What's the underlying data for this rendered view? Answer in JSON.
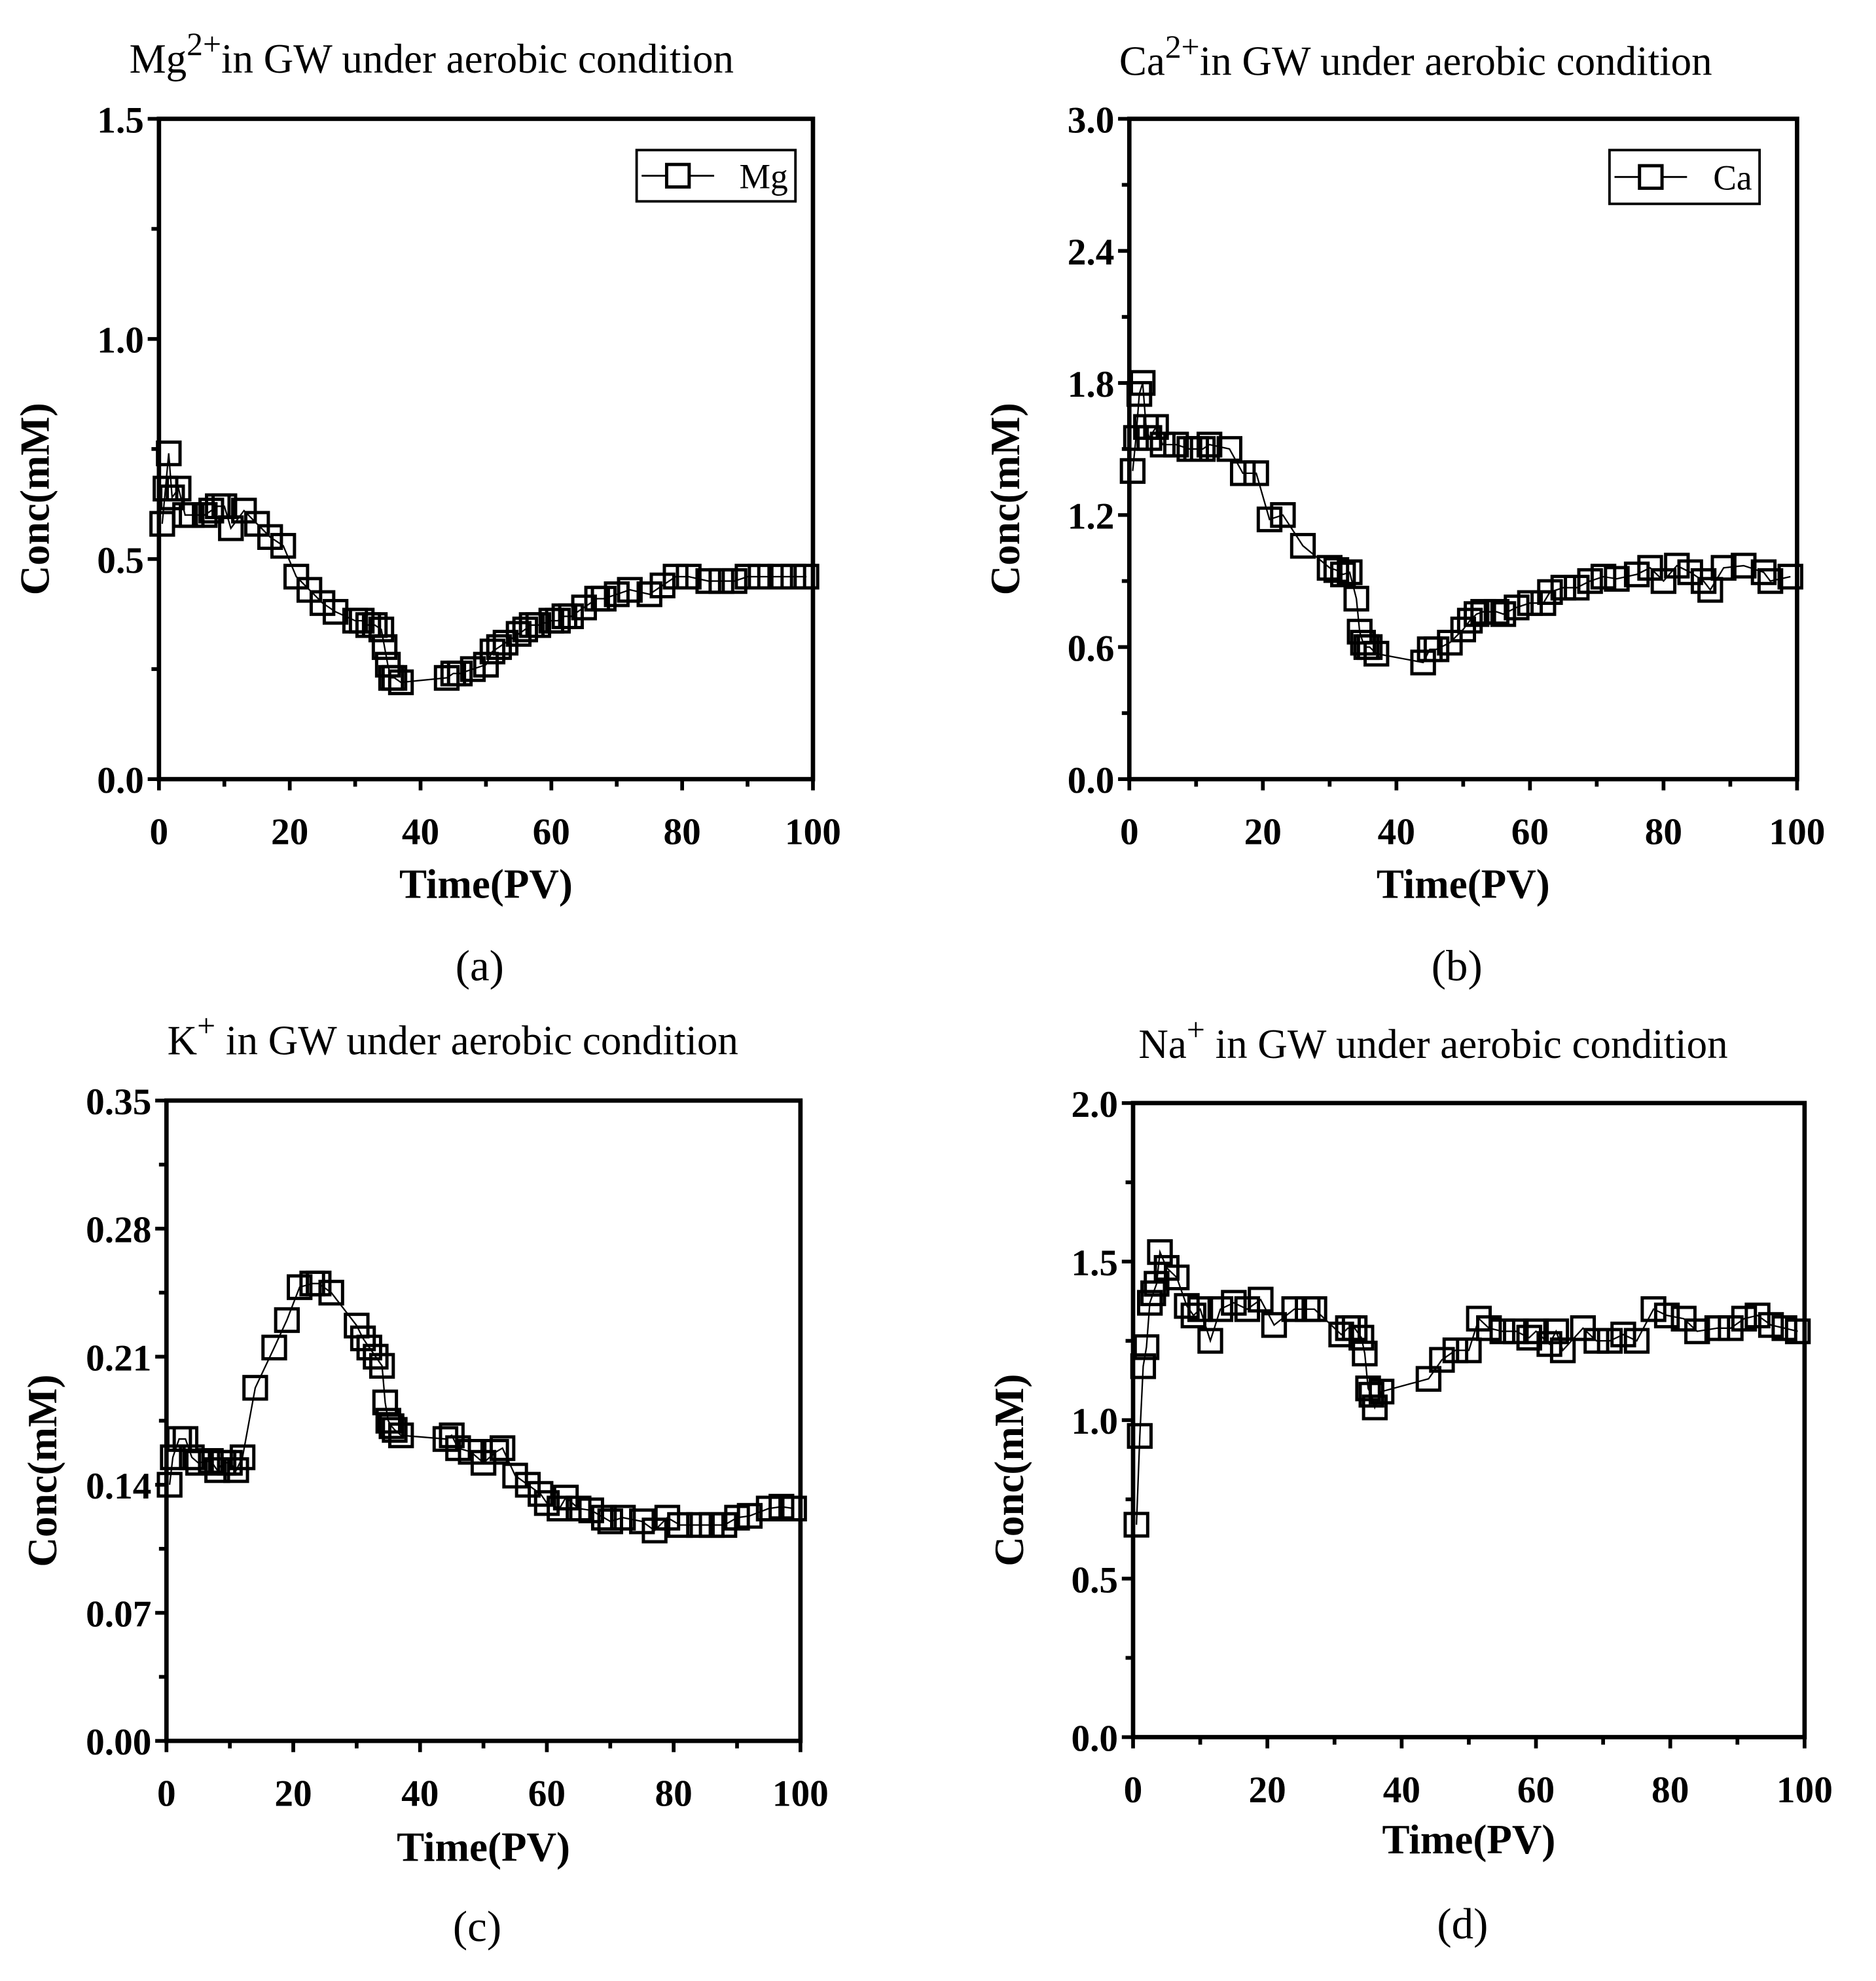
{
  "chart_data": [
    {
      "type": "line",
      "panel_label": "(a)",
      "title_main": "Mg",
      "title_sup": "2+",
      "title_rest": "in GW under aerobic condition",
      "xlabel": "Time(PV)",
      "ylabel": "Conc(mM)",
      "xlim": [
        0,
        100
      ],
      "ylim": [
        0,
        1.5
      ],
      "xticks": [
        "0",
        "20",
        "40",
        "60",
        "80",
        "100"
      ],
      "yticks": [
        "0.0",
        "0.5",
        "1.0",
        "1.5"
      ],
      "legend": "top-right",
      "grid": false,
      "series": [
        {
          "name": "Mg",
          "points": [
            [
              0.5,
              0.58
            ],
            [
              1,
              0.66
            ],
            [
              1.5,
              0.74
            ],
            [
              2,
              0.64
            ],
            [
              3,
              0.66
            ],
            [
              4,
              0.6
            ],
            [
              5,
              0.6
            ],
            [
              7,
              0.6
            ],
            [
              8,
              0.61
            ],
            [
              9,
              0.62
            ],
            [
              10,
              0.62
            ],
            [
              11,
              0.57
            ],
            [
              13,
              0.61
            ],
            [
              15,
              0.58
            ],
            [
              17,
              0.55
            ],
            [
              19,
              0.53
            ],
            [
              21,
              0.46
            ],
            [
              23,
              0.43
            ],
            [
              25,
              0.4
            ],
            [
              27,
              0.38
            ],
            [
              30,
              0.36
            ],
            [
              31,
              0.36
            ],
            [
              32,
              0.35
            ],
            [
              33,
              0.35
            ],
            [
              34,
              0.34
            ],
            [
              34.5,
              0.3
            ],
            [
              35,
              0.26
            ],
            [
              35.5,
              0.23
            ],
            [
              36,
              0.23
            ],
            [
              37,
              0.22
            ],
            [
              44,
              0.23
            ],
            [
              45,
              0.24
            ],
            [
              46,
              0.24
            ],
            [
              48,
              0.25
            ],
            [
              50,
              0.26
            ],
            [
              51,
              0.29
            ],
            [
              52,
              0.3
            ],
            [
              53,
              0.31
            ],
            [
              55,
              0.33
            ],
            [
              56,
              0.34
            ],
            [
              57,
              0.35
            ],
            [
              58,
              0.35
            ],
            [
              60,
              0.36
            ],
            [
              61,
              0.36
            ],
            [
              62,
              0.37
            ],
            [
              63,
              0.37
            ],
            [
              65,
              0.39
            ],
            [
              67,
              0.41
            ],
            [
              68,
              0.41
            ],
            [
              70,
              0.42
            ],
            [
              72,
              0.43
            ],
            [
              75,
              0.42
            ],
            [
              77,
              0.44
            ],
            [
              79,
              0.46
            ],
            [
              81,
              0.46
            ],
            [
              84,
              0.45
            ],
            [
              86,
              0.45
            ],
            [
              88,
              0.45
            ],
            [
              90,
              0.46
            ],
            [
              92,
              0.46
            ],
            [
              95,
              0.46
            ],
            [
              97,
              0.46
            ],
            [
              99,
              0.46
            ]
          ]
        }
      ]
    },
    {
      "type": "line",
      "panel_label": "(b)",
      "title_main": "Ca",
      "title_sup": "2+",
      "title_rest": "in GW under aerobic condition",
      "xlabel": "Time(PV)",
      "ylabel": "Conc(mM)",
      "xlim": [
        0,
        100
      ],
      "ylim": [
        0,
        3.0
      ],
      "xticks": [
        "0",
        "20",
        "40",
        "60",
        "80",
        "100"
      ],
      "yticks": [
        "0.0",
        "0.6",
        "1.2",
        "1.8",
        "2.4",
        "3.0"
      ],
      "legend": "top-right",
      "grid": false,
      "series": [
        {
          "name": "Ca",
          "points": [
            [
              0.5,
              1.4
            ],
            [
              1,
              1.55
            ],
            [
              1.5,
              1.75
            ],
            [
              2,
              1.8
            ],
            [
              2.5,
              1.6
            ],
            [
              3,
              1.55
            ],
            [
              4,
              1.6
            ],
            [
              5,
              1.52
            ],
            [
              7,
              1.52
            ],
            [
              9,
              1.5
            ],
            [
              10,
              1.5
            ],
            [
              11,
              1.5
            ],
            [
              12,
              1.52
            ],
            [
              15,
              1.5
            ],
            [
              17,
              1.39
            ],
            [
              19,
              1.39
            ],
            [
              21,
              1.18
            ],
            [
              23,
              1.2
            ],
            [
              26,
              1.06
            ],
            [
              30,
              0.96
            ],
            [
              31,
              0.95
            ],
            [
              32,
              0.93
            ],
            [
              33,
              0.94
            ],
            [
              34,
              0.82
            ],
            [
              34.5,
              0.67
            ],
            [
              35,
              0.62
            ],
            [
              35.5,
              0.6
            ],
            [
              36,
              0.6
            ],
            [
              37,
              0.57
            ],
            [
              44,
              0.53
            ],
            [
              45,
              0.59
            ],
            [
              46,
              0.59
            ],
            [
              48,
              0.62
            ],
            [
              50,
              0.68
            ],
            [
              51,
              0.72
            ],
            [
              52,
              0.75
            ],
            [
              53,
              0.76
            ],
            [
              55,
              0.76
            ],
            [
              56,
              0.75
            ],
            [
              58,
              0.78
            ],
            [
              60,
              0.8
            ],
            [
              62,
              0.8
            ],
            [
              63,
              0.85
            ],
            [
              65,
              0.87
            ],
            [
              67,
              0.87
            ],
            [
              69,
              0.9
            ],
            [
              71,
              0.92
            ],
            [
              73,
              0.91
            ],
            [
              76,
              0.93
            ],
            [
              78,
              0.96
            ],
            [
              80,
              0.9
            ],
            [
              82,
              0.97
            ],
            [
              84,
              0.94
            ],
            [
              86,
              0.9
            ],
            [
              87,
              0.86
            ],
            [
              89,
              0.96
            ],
            [
              92,
              0.97
            ],
            [
              95,
              0.94
            ],
            [
              96,
              0.9
            ],
            [
              99,
              0.92
            ]
          ]
        }
      ]
    },
    {
      "type": "line",
      "panel_label": "(c)",
      "title_main": "K",
      "title_sup": "+",
      "title_rest": " in GW under aerobic condition",
      "xlabel": "Time(PV)",
      "ylabel": "Conc(mM)",
      "xlim": [
        0,
        100
      ],
      "ylim": [
        0,
        0.35
      ],
      "xticks": [
        "0",
        "20",
        "40",
        "60",
        "80",
        "100"
      ],
      "yticks": [
        "0.00",
        "0.07",
        "0.14",
        "0.21",
        "0.28",
        "0.35"
      ],
      "legend": "none",
      "grid": false,
      "series": [
        {
          "name": "K",
          "points": [
            [
              0.5,
              0.14
            ],
            [
              1,
              0.155
            ],
            [
              2,
              0.165
            ],
            [
              3,
              0.165
            ],
            [
              4,
              0.155
            ],
            [
              5,
              0.152
            ],
            [
              7,
              0.153
            ],
            [
              8,
              0.148
            ],
            [
              9,
              0.152
            ],
            [
              10,
              0.152
            ],
            [
              11,
              0.148
            ],
            [
              12,
              0.155
            ],
            [
              14,
              0.193
            ],
            [
              17,
              0.215
            ],
            [
              19,
              0.23
            ],
            [
              21,
              0.248
            ],
            [
              23,
              0.25
            ],
            [
              24,
              0.25
            ],
            [
              26,
              0.245
            ],
            [
              30,
              0.227
            ],
            [
              31,
              0.22
            ],
            [
              32,
              0.215
            ],
            [
              33,
              0.21
            ],
            [
              34,
              0.205
            ],
            [
              34.5,
              0.185
            ],
            [
              35,
              0.175
            ],
            [
              35.5,
              0.172
            ],
            [
              36,
              0.17
            ],
            [
              37,
              0.167
            ],
            [
              44,
              0.165
            ],
            [
              45,
              0.167
            ],
            [
              46,
              0.16
            ],
            [
              48,
              0.158
            ],
            [
              50,
              0.152
            ],
            [
              52,
              0.158
            ],
            [
              53,
              0.16
            ],
            [
              55,
              0.145
            ],
            [
              57,
              0.14
            ],
            [
              59,
              0.135
            ],
            [
              60,
              0.13
            ],
            [
              62,
              0.127
            ],
            [
              63,
              0.133
            ],
            [
              65,
              0.127
            ],
            [
              67,
              0.126
            ],
            [
              69,
              0.122
            ],
            [
              70,
              0.12
            ],
            [
              72,
              0.122
            ],
            [
              75,
              0.12
            ],
            [
              77,
              0.115
            ],
            [
              79,
              0.122
            ],
            [
              81,
              0.118
            ],
            [
              84,
              0.118
            ],
            [
              86,
              0.118
            ],
            [
              88,
              0.118
            ],
            [
              90,
              0.122
            ],
            [
              92,
              0.123
            ],
            [
              95,
              0.127
            ],
            [
              97,
              0.128
            ],
            [
              99,
              0.127
            ]
          ]
        }
      ]
    },
    {
      "type": "line",
      "panel_label": "(d)",
      "title_main": "Na",
      "title_sup": "+",
      "title_rest": " in GW under aerobic condition",
      "xlabel": "Time(PV)",
      "ylabel": "Conc(mM)",
      "xlim": [
        0,
        100
      ],
      "ylim": [
        0,
        2.0
      ],
      "xticks": [
        "0",
        "20",
        "40",
        "60",
        "80",
        "100"
      ],
      "yticks": [
        "0.0",
        "0.5",
        "1.0",
        "1.5",
        "2.0"
      ],
      "legend": "none",
      "grid": false,
      "series": [
        {
          "name": "Na",
          "points": [
            [
              0.5,
              0.67
            ],
            [
              1,
              0.95
            ],
            [
              1.5,
              1.17
            ],
            [
              2,
              1.23
            ],
            [
              2.5,
              1.37
            ],
            [
              3,
              1.4
            ],
            [
              3.5,
              1.43
            ],
            [
              4,
              1.53
            ],
            [
              5,
              1.48
            ],
            [
              6.5,
              1.45
            ],
            [
              8,
              1.36
            ],
            [
              9,
              1.33
            ],
            [
              10,
              1.35
            ],
            [
              11.5,
              1.25
            ],
            [
              13,
              1.35
            ],
            [
              15,
              1.37
            ],
            [
              17,
              1.35
            ],
            [
              19,
              1.38
            ],
            [
              21,
              1.3
            ],
            [
              24,
              1.35
            ],
            [
              26,
              1.35
            ],
            [
              27,
              1.35
            ],
            [
              31,
              1.27
            ],
            [
              32,
              1.29
            ],
            [
              33,
              1.29
            ],
            [
              34,
              1.26
            ],
            [
              34.5,
              1.21
            ],
            [
              35,
              1.1
            ],
            [
              35.5,
              1.08
            ],
            [
              36,
              1.04
            ],
            [
              37,
              1.09
            ],
            [
              44,
              1.13
            ],
            [
              46,
              1.19
            ],
            [
              48,
              1.22
            ],
            [
              50,
              1.22
            ],
            [
              51.5,
              1.32
            ],
            [
              53,
              1.29
            ],
            [
              55,
              1.28
            ],
            [
              57,
              1.28
            ],
            [
              59,
              1.26
            ],
            [
              60,
              1.28
            ],
            [
              62,
              1.24
            ],
            [
              63,
              1.28
            ],
            [
              64,
              1.22
            ],
            [
              67,
              1.29
            ],
            [
              69,
              1.25
            ],
            [
              71,
              1.25
            ],
            [
              73,
              1.27
            ],
            [
              75,
              1.25
            ],
            [
              77.5,
              1.35
            ],
            [
              79.5,
              1.33
            ],
            [
              82,
              1.32
            ],
            [
              84,
              1.28
            ],
            [
              87,
              1.29
            ],
            [
              89,
              1.29
            ],
            [
              91,
              1.32
            ],
            [
              93,
              1.33
            ],
            [
              95,
              1.3
            ],
            [
              97,
              1.29
            ],
            [
              99,
              1.28
            ]
          ]
        }
      ]
    }
  ]
}
